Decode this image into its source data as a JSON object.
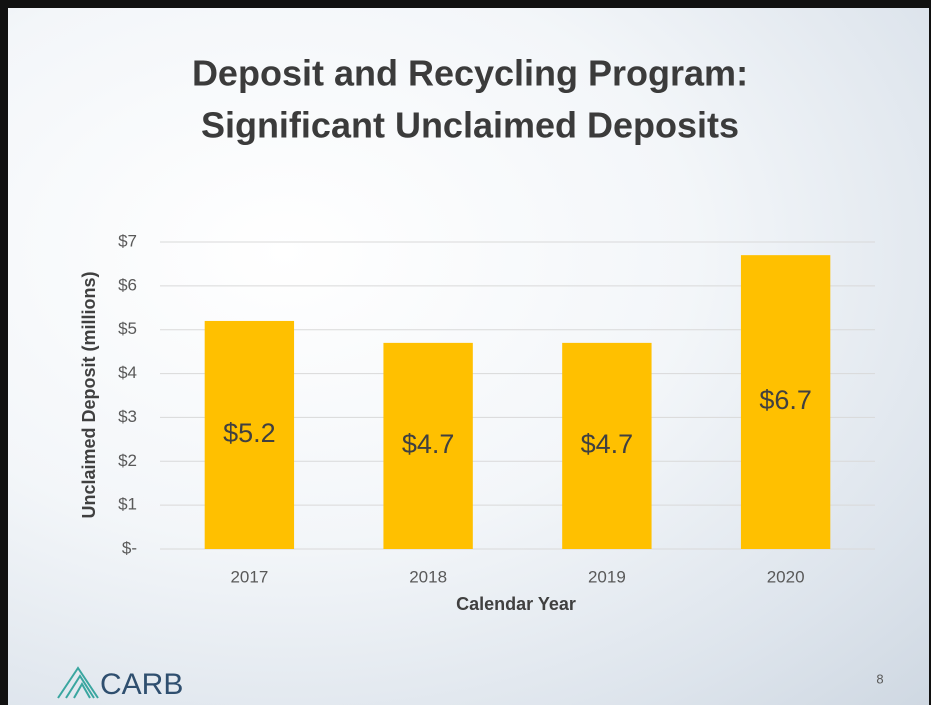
{
  "chart_data": {
    "type": "bar",
    "title": [
      "Deposit and Recycling Program:",
      "Significant Unclaimed Deposits"
    ],
    "categories": [
      "2017",
      "2018",
      "2019",
      "2020"
    ],
    "values": [
      5.2,
      4.7,
      4.7,
      6.7
    ],
    "value_labels": [
      "$5.2",
      "$4.7",
      "$4.7",
      "$6.7"
    ],
    "color": "#ffc000",
    "xlabel": "Calendar Year",
    "ylabel": "Unclaimed Deposit (millions)",
    "ylim": [
      0,
      7
    ],
    "yticks": [
      {
        "value": 0,
        "label": "$-"
      },
      {
        "value": 1,
        "label": "$1"
      },
      {
        "value": 2,
        "label": "$2"
      },
      {
        "value": 3,
        "label": "$3"
      },
      {
        "value": 4,
        "label": "$4"
      },
      {
        "value": 5,
        "label": "$5"
      },
      {
        "value": 6,
        "label": "$6"
      },
      {
        "value": 7,
        "label": "$7"
      }
    ],
    "grid": true
  },
  "logo": "CARB",
  "page_number": "8"
}
